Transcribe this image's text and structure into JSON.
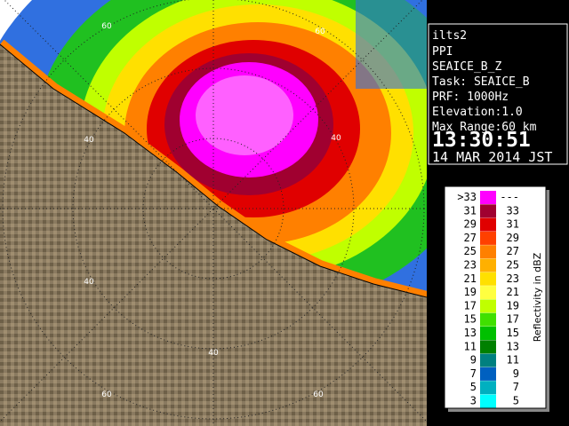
{
  "info": {
    "radar": "ilts2",
    "mode": "PPI",
    "product": "SEAICE_B_Z",
    "task": "Task: SEAICE_B",
    "prf": "PRF: 1000Hz",
    "elevation": "Elevation:1.0",
    "max_range": "Max Range:60 km",
    "time": "13:30:51",
    "date": "14 MAR 2014 JST"
  },
  "legend": {
    "title": "Reflectivity in dBZ",
    "rows": [
      {
        "low": ">33",
        "high": "---",
        "color": "#ff00ff"
      },
      {
        "low": "31",
        "high": "33",
        "color": "#a00030"
      },
      {
        "low": "29",
        "high": "31",
        "color": "#e00000"
      },
      {
        "low": "27",
        "high": "29",
        "color": "#ff4000"
      },
      {
        "low": "25",
        "high": "27",
        "color": "#ff8000"
      },
      {
        "low": "23",
        "high": "25",
        "color": "#ffb000"
      },
      {
        "low": "21",
        "high": "23",
        "color": "#ffe000"
      },
      {
        "low": "19",
        "high": "21",
        "color": "#ffff40"
      },
      {
        "low": "17",
        "high": "19",
        "color": "#c0ff00"
      },
      {
        "low": "15",
        "high": "17",
        "color": "#40e000"
      },
      {
        "low": "13",
        "high": "15",
        "color": "#00c000"
      },
      {
        "low": "11",
        "high": "13",
        "color": "#008000"
      },
      {
        "low": "9",
        "high": "11",
        "color": "#008080"
      },
      {
        "low": "7",
        "high": "9",
        "color": "#0060c0"
      },
      {
        "low": "5",
        "high": "7",
        "color": "#00b0c0"
      },
      {
        "low": "3",
        "high": "5",
        "color": "#00ffff"
      }
    ]
  },
  "ring_labels": [
    "60",
    "60",
    "40",
    "40",
    "40",
    "40",
    "60",
    "60"
  ]
}
